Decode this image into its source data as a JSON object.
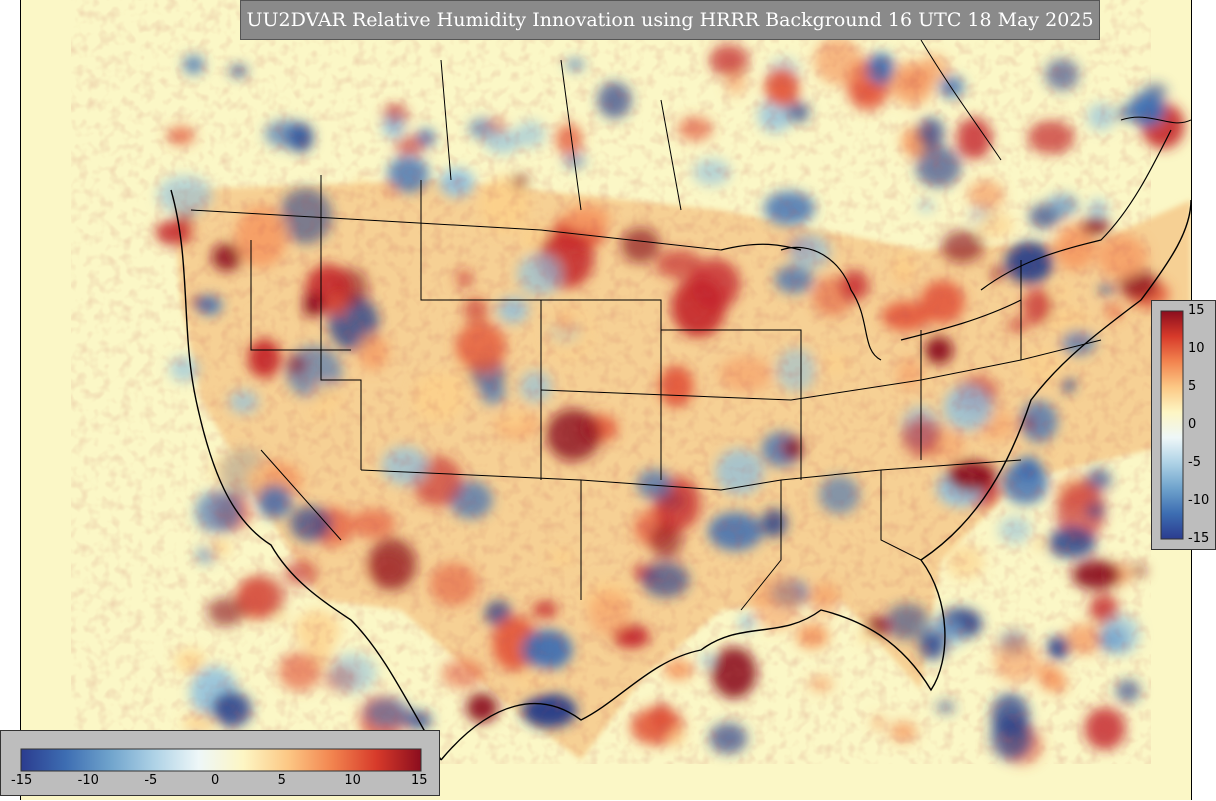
{
  "title": "UU2DVAR Relative Humidity Innovation using HRRR Background 16 UTC 18 May 2025",
  "variable": "Relative Humidity Innovation",
  "colorbar": {
    "min": -15,
    "max": 15,
    "ticks": [
      "-15",
      "-10",
      "-5",
      "0",
      "5",
      "10",
      "15"
    ],
    "colors": [
      "#2b3c8f",
      "#3d6db2",
      "#6fa3cc",
      "#aed2e6",
      "#eef7f8",
      "#fdf6c4",
      "#fcc885",
      "#f2844f",
      "#d73a2a",
      "#8b0d1e"
    ]
  },
  "colors": {
    "background": "#fbf7c6",
    "title_box": "#8a8a8a",
    "colorbar_box": "#bdbdbd"
  }
}
